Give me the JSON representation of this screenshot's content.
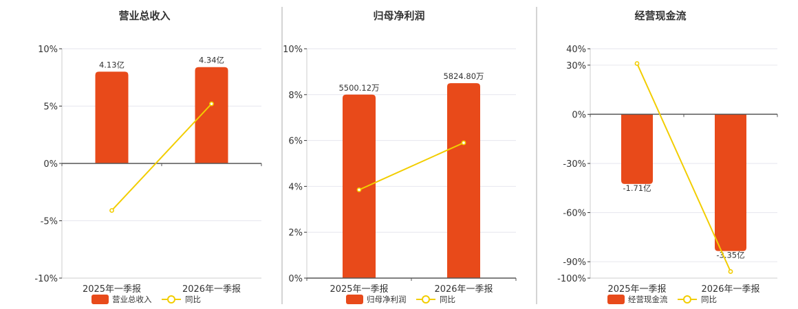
{
  "colors": {
    "bar": "#E84A1A",
    "line": "#F2CD00",
    "grid": "#E6E6EE",
    "axis": "#333333",
    "divider": "#AAAAAA"
  },
  "chart_data": [
    {
      "type": "bar",
      "title": "营业总收入",
      "categories": [
        "2025年一季报",
        "2026年一季报"
      ],
      "series": [
        {
          "name": "营业总收入",
          "type": "bar",
          "values": [
            8.0,
            8.4
          ],
          "labels": [
            "4.13亿",
            "4.34亿"
          ]
        },
        {
          "name": "同比",
          "type": "line",
          "values": [
            -4.1,
            5.2
          ]
        }
      ],
      "ylim": [
        -10,
        10
      ],
      "yticks": [
        -10,
        -5,
        0,
        5,
        10
      ],
      "ytick_labels": [
        "-10%",
        "-5%",
        "0%",
        "5%",
        "10%"
      ],
      "grid": true,
      "legend_position": "bottom"
    },
    {
      "type": "bar",
      "title": "归母净利润",
      "categories": [
        "2025年一季报",
        "2026年一季报"
      ],
      "series": [
        {
          "name": "归母净利润",
          "type": "bar",
          "values": [
            8.0,
            8.5
          ],
          "labels": [
            "5500.12万",
            "5824.80万"
          ]
        },
        {
          "name": "同比",
          "type": "line",
          "values": [
            3.85,
            5.9
          ]
        }
      ],
      "ylim": [
        0,
        10
      ],
      "yticks": [
        0,
        2,
        4,
        6,
        8,
        10
      ],
      "ytick_labels": [
        "0%",
        "2%",
        "4%",
        "6%",
        "8%",
        "10%"
      ],
      "grid": true,
      "legend_position": "bottom"
    },
    {
      "type": "bar",
      "title": "经营现金流",
      "categories": [
        "2025年一季报",
        "2026年一季报"
      ],
      "series": [
        {
          "name": "经营现金流",
          "type": "bar",
          "values": [
            -42.5,
            -83.5
          ],
          "labels": [
            "-1.71亿",
            "-3.35亿"
          ]
        },
        {
          "name": "同比",
          "type": "line",
          "values": [
            31,
            -96
          ]
        }
      ],
      "ylim": [
        -100,
        40
      ],
      "yticks": [
        -100,
        -90,
        -60,
        -30,
        0,
        30,
        40
      ],
      "ytick_labels": [
        "-100%",
        "-90%",
        "-60%",
        "-30%",
        "0%",
        "30%",
        "40%"
      ],
      "grid": true,
      "legend_position": "bottom"
    }
  ]
}
